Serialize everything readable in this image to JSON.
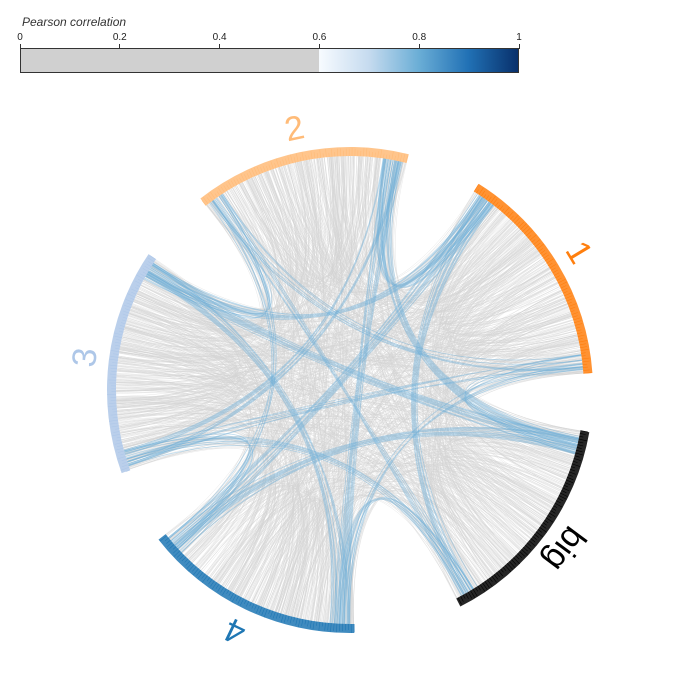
{
  "legend": {
    "title": "Pearson correlation",
    "ticks": [
      "0",
      "0.2",
      "0.4",
      "0.6",
      "0.8",
      "1"
    ],
    "tick_values": [
      0,
      0.2,
      0.4,
      0.6,
      0.8,
      1
    ],
    "threshold": 0.6,
    "below_color": "#d0d0d0",
    "gradient": [
      "#f7fbff",
      "#c6dbef",
      "#6baed6",
      "#2171b5",
      "#08306b"
    ]
  },
  "groups": [
    {
      "label": "1",
      "color": "#ff7f0e",
      "start_angle": -58,
      "end_angle": -4
    },
    {
      "label": "big",
      "color": "#000000",
      "start_angle": 10,
      "end_angle": 63
    },
    {
      "label": "4",
      "color": "#1f77b4",
      "start_angle": 89,
      "end_angle": 142
    },
    {
      "label": "3",
      "color": "#aec7e8",
      "start_angle": 160,
      "end_angle": 214
    },
    {
      "label": "2",
      "color": "#ffbb78",
      "start_angle": 232,
      "end_angle": 284
    }
  ],
  "link_colors": {
    "weak": "#d3d3d3",
    "strong": "#6baed6"
  }
}
